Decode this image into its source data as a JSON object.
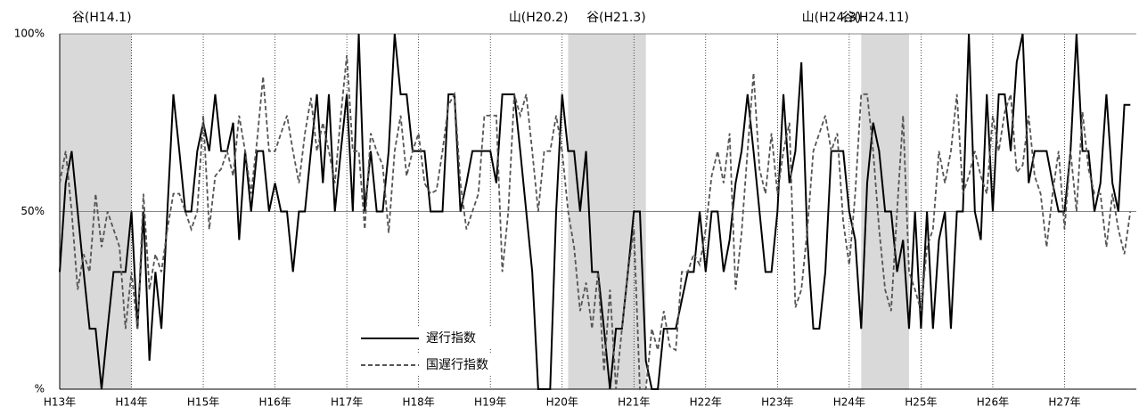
{
  "chart_data": {
    "type": "line",
    "categories": [
      "H13年",
      null,
      null,
      null,
      null,
      null,
      null,
      null,
      null,
      null,
      null,
      null,
      "H14年",
      null,
      null,
      null,
      null,
      null,
      null,
      null,
      null,
      null,
      null,
      null,
      "H15年",
      null,
      null,
      null,
      null,
      null,
      null,
      null,
      null,
      null,
      null,
      null,
      "H16年",
      null,
      null,
      null,
      null,
      null,
      null,
      null,
      null,
      null,
      null,
      null,
      "H17年",
      null,
      null,
      null,
      null,
      null,
      null,
      null,
      null,
      null,
      null,
      null,
      "H18年",
      null,
      null,
      null,
      null,
      null,
      null,
      null,
      null,
      null,
      null,
      null,
      "H19年",
      null,
      null,
      null,
      null,
      null,
      null,
      null,
      null,
      null,
      null,
      null,
      "H20年",
      null,
      null,
      null,
      null,
      null,
      null,
      null,
      null,
      null,
      null,
      null,
      "H21年",
      null,
      null,
      null,
      null,
      null,
      null,
      null,
      null,
      null,
      null,
      null,
      "H22年",
      null,
      null,
      null,
      null,
      null,
      null,
      null,
      null,
      null,
      null,
      null,
      "H23年",
      null,
      null,
      null,
      null,
      null,
      null,
      null,
      null,
      null,
      null,
      null,
      "H24年",
      null,
      null,
      null,
      null,
      null,
      null,
      null,
      null,
      null,
      null,
      null,
      "H25年",
      null,
      null,
      null,
      null,
      null,
      null,
      null,
      null,
      null,
      null,
      null,
      "H26年",
      null,
      null,
      null,
      null,
      null,
      null,
      null,
      null,
      null,
      null,
      null,
      "H27年",
      null,
      null,
      null,
      null,
      null,
      null,
      null,
      null,
      null,
      null,
      null
    ],
    "series": [
      {
        "name": "遅行指数",
        "color": "#000000",
        "line_style": "solid",
        "values": [
          33,
          58,
          67,
          50,
          33,
          17,
          17,
          0,
          17,
          33,
          33,
          33,
          50,
          17,
          50,
          8,
          33,
          17,
          50,
          83,
          67,
          50,
          50,
          67,
          75,
          67,
          83,
          67,
          67,
          75,
          42,
          67,
          50,
          67,
          67,
          50,
          58,
          50,
          50,
          33,
          50,
          50,
          67,
          83,
          58,
          83,
          50,
          67,
          83,
          50,
          100,
          50,
          67,
          50,
          50,
          67,
          100,
          83,
          83,
          67,
          67,
          67,
          50,
          50,
          50,
          83,
          83,
          50,
          58,
          67,
          67,
          67,
          67,
          58,
          83,
          83,
          83,
          67,
          50,
          33,
          0,
          0,
          0,
          50,
          83,
          67,
          67,
          50,
          67,
          33,
          33,
          17,
          0,
          17,
          17,
          33,
          50,
          50,
          8,
          0,
          0,
          17,
          17,
          17,
          25,
          33,
          33,
          50,
          33,
          50,
          50,
          33,
          42,
          58,
          67,
          83,
          67,
          50,
          33,
          33,
          50,
          83,
          58,
          67,
          92,
          42,
          17,
          17,
          33,
          67,
          67,
          67,
          50,
          42,
          17,
          58,
          75,
          67,
          50,
          50,
          33,
          42,
          17,
          50,
          17,
          50,
          17,
          42,
          50,
          17,
          50,
          50,
          100,
          50,
          42,
          83,
          50,
          83,
          83,
          67,
          92,
          100,
          58,
          67,
          67,
          67,
          58,
          50,
          50,
          67,
          100,
          67,
          67,
          50,
          58,
          83,
          58,
          50,
          80,
          80
        ]
      },
      {
        "name": "国遅行指数",
        "color": "#555555",
        "line_style": "dashed",
        "values": [
          58,
          67,
          50,
          28,
          38,
          33,
          55,
          40,
          50,
          45,
          40,
          17,
          33,
          17,
          55,
          28,
          38,
          33,
          45,
          55,
          55,
          50,
          45,
          50,
          77,
          45,
          60,
          62,
          67,
          60,
          77,
          67,
          55,
          70,
          88,
          67,
          67,
          72,
          77,
          67,
          58,
          72,
          82,
          67,
          75,
          67,
          58,
          77,
          94,
          67,
          67,
          45,
          72,
          67,
          63,
          44,
          67,
          77,
          60,
          67,
          72,
          58,
          55,
          56,
          67,
          80,
          83,
          58,
          45,
          50,
          55,
          77,
          77,
          77,
          33,
          50,
          83,
          77,
          83,
          67,
          50,
          67,
          67,
          77,
          67,
          50,
          40,
          22,
          30,
          17,
          33,
          5,
          28,
          0,
          17,
          33,
          45,
          0,
          0,
          17,
          11,
          22,
          12,
          11,
          33,
          33,
          38,
          35,
          45,
          60,
          67,
          58,
          72,
          28,
          44,
          67,
          89,
          62,
          55,
          72,
          55,
          67,
          75,
          23,
          28,
          45,
          67,
          72,
          77,
          67,
          72,
          47,
          35,
          55,
          83,
          83,
          67,
          45,
          28,
          22,
          50,
          77,
          33,
          28,
          22,
          40,
          45,
          67,
          58,
          67,
          83,
          55,
          60,
          67,
          60,
          55,
          77,
          67,
          78,
          83,
          61,
          63,
          77,
          60,
          55,
          40,
          55,
          67,
          45,
          67,
          50,
          78,
          62,
          55,
          55,
          40,
          55,
          45,
          38,
          50
        ]
      }
    ],
    "ylim": [
      0,
      100
    ],
    "yticks": [
      {
        "value": 0,
        "label": "%"
      },
      {
        "value": 50,
        "label": "50%"
      },
      {
        "value": 100,
        "label": "100%"
      }
    ],
    "grid": true,
    "recessions": [
      [
        0,
        12
      ],
      [
        85,
        98
      ],
      [
        134,
        142
      ]
    ],
    "annotations": [
      {
        "text": "谷(H14.1)",
        "index": 12
      },
      {
        "text": "山(H20.2)",
        "index": 85
      },
      {
        "text": "谷(H21.3)",
        "index": 98
      },
      {
        "text": "山(H24.3)",
        "index": 134
      },
      {
        "text": "谷(H24.11)",
        "index": 142
      }
    ]
  }
}
